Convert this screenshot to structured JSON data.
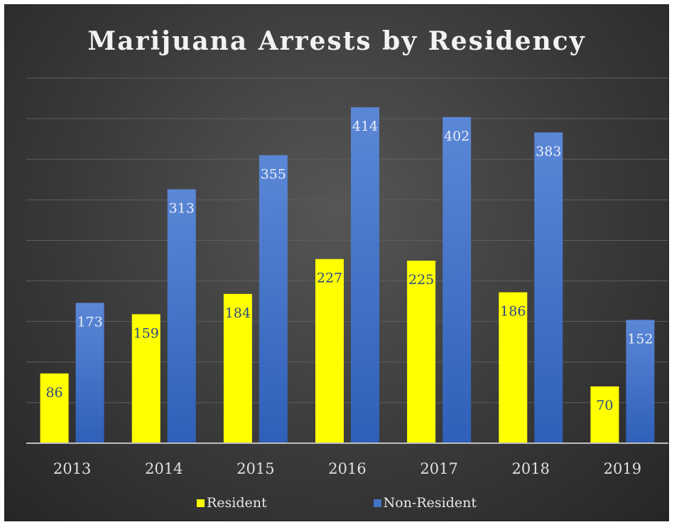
{
  "chart_data": {
    "type": "bar",
    "title": "Marijuana Arrests by Residency",
    "categories": [
      "2013",
      "2014",
      "2015",
      "2016",
      "2017",
      "2018",
      "2019"
    ],
    "series": [
      {
        "name": "Resident",
        "values": [
          86,
          159,
          184,
          227,
          225,
          186,
          70
        ],
        "color": "#ffff00",
        "label_color": "#2a4a8a"
      },
      {
        "name": "Non-Resident",
        "values": [
          173,
          313,
          355,
          414,
          402,
          383,
          152
        ],
        "color": "#4472c4",
        "label_color": "#e8eef8"
      }
    ],
    "ylim": [
      0,
      450
    ],
    "grid": true,
    "axis_label_color": "#e0e0e0",
    "legend_position": "bottom"
  }
}
